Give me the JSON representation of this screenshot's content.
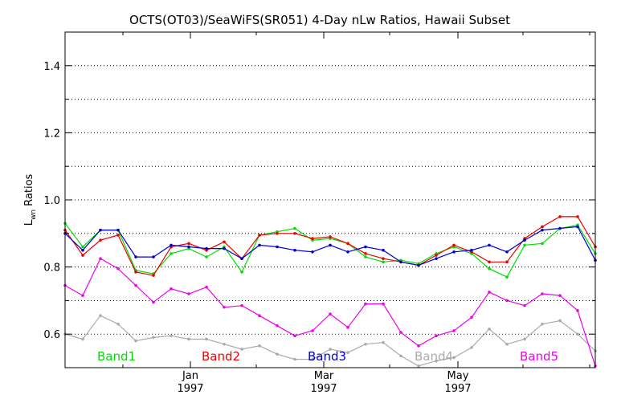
{
  "chart_data": {
    "type": "line",
    "title": "OCTS(OT03)/SeaWiFS(SR051) 4-Day nLw Ratios, Hawaii Subset",
    "ylabel_main": "L",
    "ylabel_sub": "wn",
    "ylabel_rest": " Ratios",
    "ylim": [
      0.5,
      1.5
    ],
    "yticks": [
      0.6,
      0.8,
      1.0,
      1.2,
      1.4
    ],
    "ytick_labels": [
      "0.6",
      "0.8",
      "1.0",
      "1.2",
      "1.4"
    ],
    "y_gridlines": [
      0.6,
      0.7,
      0.8,
      0.9,
      1.0,
      1.1,
      1.2,
      1.3,
      1.4
    ],
    "grid": "horizontal dotted",
    "x_tick_labels": [
      {
        "month": "Jan",
        "year": "1997"
      },
      {
        "month": "Mar",
        "year": "1997"
      },
      {
        "month": "May",
        "year": "1997"
      }
    ],
    "series": [
      {
        "name": "Band1",
        "color": "#00dd00",
        "values": [
          0.93,
          0.86,
          0.91,
          0.91,
          0.79,
          0.78,
          0.84,
          0.855,
          0.83,
          0.86,
          0.785,
          0.895,
          0.905,
          0.915,
          0.88,
          0.885,
          0.87,
          0.83,
          0.815,
          0.82,
          0.81,
          0.84,
          0.86,
          0.84,
          0.795,
          0.77,
          0.865,
          0.87,
          0.915,
          0.925,
          0.84
        ]
      },
      {
        "name": "Band2",
        "color": "#ee0000",
        "values": [
          0.91,
          0.835,
          0.88,
          0.895,
          0.785,
          0.775,
          0.86,
          0.87,
          0.85,
          0.875,
          0.825,
          0.895,
          0.9,
          0.9,
          0.885,
          0.89,
          0.87,
          0.84,
          0.825,
          0.815,
          0.805,
          0.835,
          0.865,
          0.845,
          0.815,
          0.815,
          0.885,
          0.92,
          0.95,
          0.95,
          0.86
        ]
      },
      {
        "name": "Band3",
        "color": "#0000cc",
        "values": [
          0.9,
          0.85,
          0.91,
          0.91,
          0.83,
          0.83,
          0.865,
          0.86,
          0.855,
          0.855,
          0.825,
          0.865,
          0.86,
          0.85,
          0.845,
          0.865,
          0.845,
          0.86,
          0.85,
          0.815,
          0.805,
          0.825,
          0.845,
          0.85,
          0.865,
          0.845,
          0.88,
          0.91,
          0.915,
          0.92,
          0.82
        ]
      },
      {
        "name": "Band4",
        "color": "#aaaaaa",
        "values": [
          0.6,
          0.585,
          0.655,
          0.63,
          0.58,
          0.59,
          0.595,
          0.585,
          0.585,
          0.57,
          0.555,
          0.565,
          0.54,
          0.525,
          0.525,
          0.555,
          0.545,
          0.57,
          0.575,
          0.535,
          0.505,
          0.52,
          0.53,
          0.56,
          0.615,
          0.57,
          0.585,
          0.63,
          0.64,
          0.6,
          0.55
        ]
      },
      {
        "name": "Band5",
        "color": "#ee00ee",
        "values": [
          0.745,
          0.715,
          0.825,
          0.795,
          0.745,
          0.695,
          0.735,
          0.72,
          0.74,
          0.68,
          0.685,
          0.655,
          0.625,
          0.595,
          0.61,
          0.66,
          0.62,
          0.69,
          0.69,
          0.605,
          0.565,
          0.595,
          0.61,
          0.65,
          0.725,
          0.7,
          0.685,
          0.72,
          0.715,
          0.67,
          0.505
        ]
      }
    ],
    "legend": "bottom, inline"
  }
}
